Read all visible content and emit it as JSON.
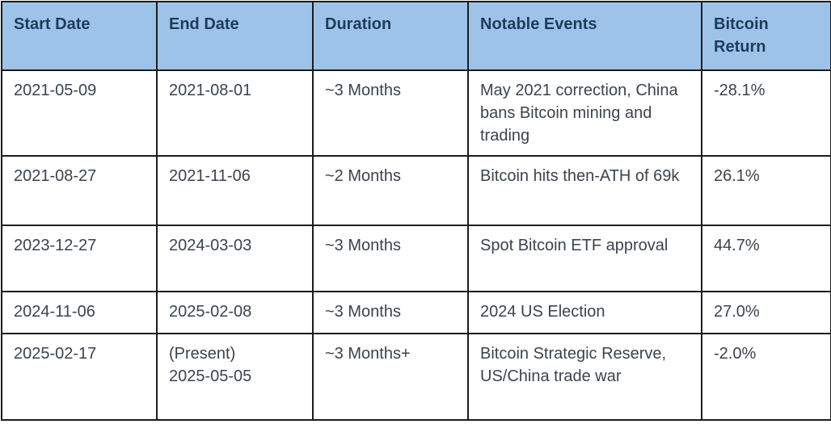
{
  "colors": {
    "header_bg": "#9dc4e8",
    "header_text": "#1f3a5c",
    "body_text": "#3b4350",
    "border": "#1c1c1c"
  },
  "chart_data": {
    "type": "table",
    "columns": [
      "Start Date",
      "End Date",
      "Duration",
      "Notable Events",
      "Bitcoin Return"
    ],
    "rows": [
      {
        "start_date": "2021-05-09",
        "end_date": "2021-08-01",
        "duration": "~3 Months",
        "notable_events": "May 2021 correction, China bans Bitcoin mining and trading",
        "bitcoin_return": "-28.1%"
      },
      {
        "start_date": "2021-08-27",
        "end_date": "2021-11-06",
        "duration": "~2 Months",
        "notable_events": "Bitcoin hits then-ATH of 69k",
        "bitcoin_return": "26.1%"
      },
      {
        "start_date": "2023-12-27",
        "end_date": "2024-03-03",
        "duration": "~3 Months",
        "notable_events": "Spot Bitcoin ETF approval",
        "bitcoin_return": "44.7%"
      },
      {
        "start_date": "2024-11-06",
        "end_date": "2025-02-08",
        "duration": "~3 Months",
        "notable_events": "2024 US Election",
        "bitcoin_return": "27.0%"
      },
      {
        "start_date": "2025-02-17",
        "end_date": "(Present)\n2025-05-05",
        "duration": "~3 Months+",
        "notable_events": "Bitcoin Strategic Reserve, US/China trade war",
        "bitcoin_return": "-2.0%"
      }
    ]
  }
}
